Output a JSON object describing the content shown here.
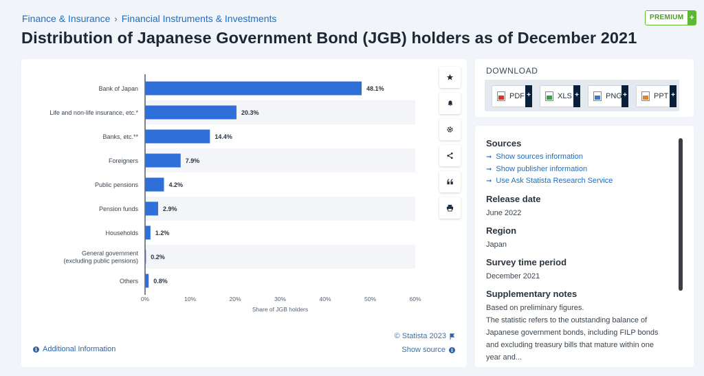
{
  "breadcrumb": {
    "items": [
      "Finance & Insurance",
      "Financial Instruments & Investments"
    ],
    "separator": "›"
  },
  "premium": {
    "label": "PREMIUM",
    "plus": "+"
  },
  "page_title": "Distribution of Japanese Government Bond (JGB) holders as of December 2021",
  "toolbar": {
    "icons": [
      "star-icon",
      "bell-icon",
      "gear-icon",
      "share-icon",
      "quote-icon",
      "print-icon"
    ]
  },
  "chart_data": {
    "type": "bar",
    "orientation": "horizontal",
    "categories": [
      "Bank of Japan",
      "Life and non-life insurance, etc.*",
      "Banks, etc.**",
      "Foreigners",
      "Public pensions",
      "Pension funds",
      "Households",
      "General government (excluding public pensions)",
      "Others"
    ],
    "category_lines": [
      [
        "Bank of Japan"
      ],
      [
        "Life and non-life insurance, etc.*"
      ],
      [
        "Banks, etc.**"
      ],
      [
        "Foreigners"
      ],
      [
        "Public pensions"
      ],
      [
        "Pension funds"
      ],
      [
        "Households"
      ],
      [
        "General government",
        "(excluding public pensions)"
      ],
      [
        "Others"
      ]
    ],
    "values": [
      48.1,
      20.3,
      14.4,
      7.9,
      4.2,
      2.9,
      1.2,
      0.2,
      0.8
    ],
    "value_labels": [
      "48.1%",
      "20.3%",
      "14.4%",
      "7.9%",
      "4.2%",
      "2.9%",
      "1.2%",
      "0.2%",
      "0.8%"
    ],
    "xlabel": "Share of JGB holders",
    "ylabel": "",
    "xlim": [
      0,
      60
    ],
    "ticks": [
      0,
      10,
      20,
      30,
      40,
      50,
      60
    ],
    "tick_labels": [
      "0%",
      "10%",
      "20%",
      "30%",
      "40%",
      "50%",
      "60%"
    ],
    "bar_color": "#2f6fd8",
    "grid": false,
    "legend": "none"
  },
  "chart_footer": {
    "copyright": "© Statista 2023",
    "show_source": "Show source",
    "additional_info": "Additional Information"
  },
  "download": {
    "heading": "DOWNLOAD",
    "buttons": [
      {
        "label": "PDF",
        "icon": "pdf-file-icon",
        "color": "#d9342b"
      },
      {
        "label": "XLS",
        "icon": "xls-file-icon",
        "color": "#3aa046"
      },
      {
        "label": "PNG",
        "icon": "png-file-icon",
        "color": "#3d78c4"
      },
      {
        "label": "PPT",
        "icon": "ppt-file-icon",
        "color": "#e0812a"
      }
    ],
    "plus": "+"
  },
  "info": {
    "sources_heading": "Sources",
    "source_links": [
      "Show sources information",
      "Show publisher information",
      "Use Ask Statista Research Service"
    ],
    "release_date_heading": "Release date",
    "release_date": "June 2022",
    "region_heading": "Region",
    "region": "Japan",
    "survey_heading": "Survey time period",
    "survey": "December 2021",
    "notes_heading": "Supplementary notes",
    "notes_lines": [
      "Based on preliminary figures.",
      "The statistic refers to the outstanding balance of",
      "Japanese government bonds, including FILP bonds",
      "and excluding treasury bills that mature within one",
      "year and..."
    ]
  },
  "colors": {
    "accent": "#1a6ec7",
    "bar": "#2f6fd8",
    "premium_green": "#5cb833",
    "stripe": "#f3f5f8"
  }
}
